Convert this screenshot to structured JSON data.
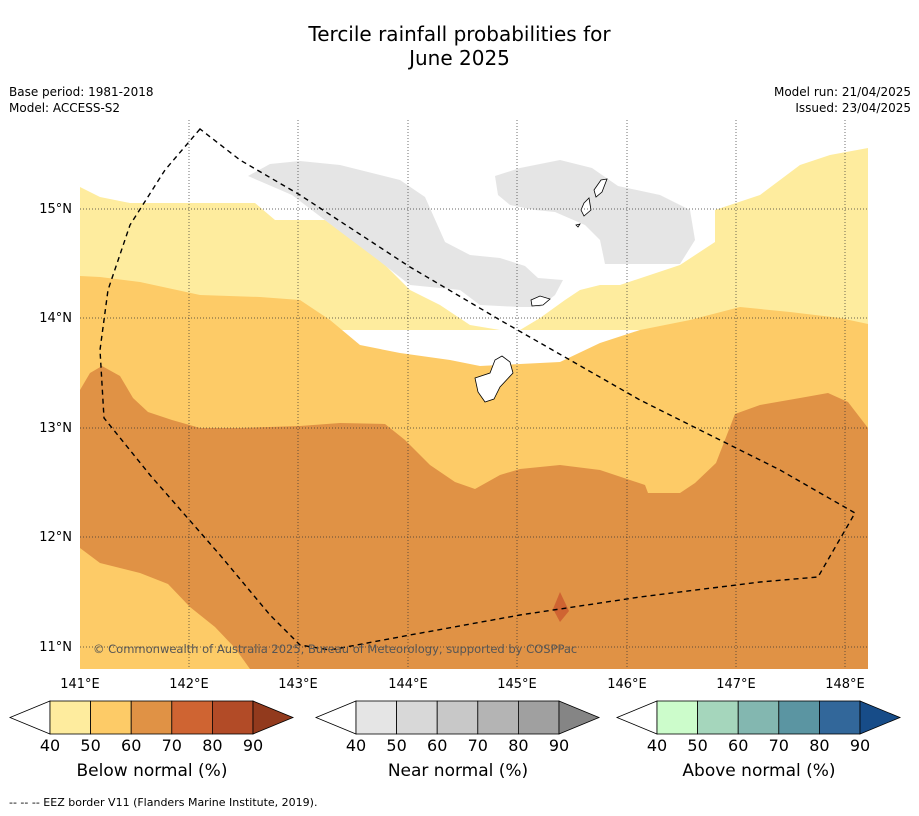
{
  "title_line1": "Tercile rainfall probabilities for",
  "title_line2": "June 2025",
  "base_period": "Base period: 1981-2018",
  "model": "Model: ACCESS-S2",
  "model_run": "Model run: 21/04/2025",
  "issued": "Issued: 23/04/2025",
  "copyright": "© Commonwealth of Australia 2025, Bureau of Meteorology, supported by COSPPac",
  "footer_note": "--  --  -- EEZ border V11 (Flanders Marine Institute, 2019).",
  "lon_labels": [
    "141°E",
    "142°E",
    "143°E",
    "144°E",
    "145°E",
    "146°E",
    "147°E",
    "148°E"
  ],
  "lat_labels": [
    "15°N",
    "14°N",
    "13°N",
    "12°N",
    "11°N"
  ],
  "colorbars": [
    {
      "label": "Below normal (%)",
      "ticks": [
        "40",
        "50",
        "60",
        "70",
        "80",
        "90"
      ],
      "colors": [
        "#ffffff",
        "#feec9e",
        "#fdcb67",
        "#e09245",
        "#cf6432",
        "#b24b27",
        "#923a1d"
      ]
    },
    {
      "label": "Near normal (%)",
      "ticks": [
        "40",
        "50",
        "60",
        "70",
        "80",
        "90"
      ],
      "colors": [
        "#ffffff",
        "#e5e5e5",
        "#d8d8d8",
        "#c8c8c8",
        "#b4b4b4",
        "#a0a0a0",
        "#858585"
      ]
    },
    {
      "label": "Above normal (%)",
      "ticks": [
        "40",
        "50",
        "60",
        "70",
        "80",
        "90"
      ],
      "colors": [
        "#ffffff",
        "#ccfccb",
        "#a5d6bc",
        "#83b7b0",
        "#5b95a2",
        "#32679a",
        "#174c88"
      ]
    }
  ]
}
